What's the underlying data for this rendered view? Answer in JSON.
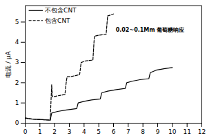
{
  "chart_data": {
    "type": "line",
    "y_label": "电流 / μA",
    "xlim": [
      0,
      12
    ],
    "xticks": [
      0,
      1,
      2,
      3,
      4,
      5,
      6,
      7,
      8,
      9,
      10,
      11,
      12
    ],
    "ylim": [
      0,
      5.8
    ],
    "yticks": [
      0,
      1,
      2,
      3,
      4,
      5
    ],
    "legend": "top-left",
    "annotations": [
      {
        "text": "0.02~0.1Mm 葡萄糖响应",
        "x": 6.15,
        "y": 4.6
      }
    ],
    "series": [
      {
        "name": "不包含CNT",
        "color": "#000000",
        "line_style": "solid",
        "x": [
          0,
          0.5,
          1.0,
          1.7,
          1.8,
          2.2,
          2.8,
          3.5,
          3.6,
          4.0,
          4.5,
          5.1,
          5.2,
          5.6,
          6.2,
          6.8,
          6.9,
          7.3,
          7.8,
          8.4,
          8.5,
          8.9,
          9.5,
          10.0
        ],
        "values": [
          0.25,
          0.2,
          0.18,
          0.15,
          0.5,
          0.58,
          0.65,
          0.72,
          1.0,
          1.08,
          1.15,
          1.2,
          1.5,
          1.58,
          1.66,
          1.72,
          2.0,
          2.08,
          2.15,
          2.2,
          2.5,
          2.62,
          2.7,
          2.75
        ]
      },
      {
        "name": "包含CNT",
        "color": "#000000",
        "line_style": "dashed",
        "x": [
          0,
          0.5,
          1.0,
          1.7,
          1.8,
          1.85,
          2.0,
          2.4,
          2.7,
          2.8,
          2.85,
          3.1,
          3.7,
          3.8,
          4.1,
          4.6,
          4.7,
          5.0,
          5.5,
          5.6,
          5.8,
          6.0
        ],
        "values": [
          0.25,
          0.2,
          0.18,
          0.15,
          1.9,
          1.3,
          1.32,
          1.38,
          1.42,
          2.1,
          2.3,
          2.3,
          2.4,
          3.0,
          3.08,
          3.12,
          4.3,
          4.35,
          4.4,
          5.3,
          5.35,
          5.4
        ]
      }
    ]
  }
}
